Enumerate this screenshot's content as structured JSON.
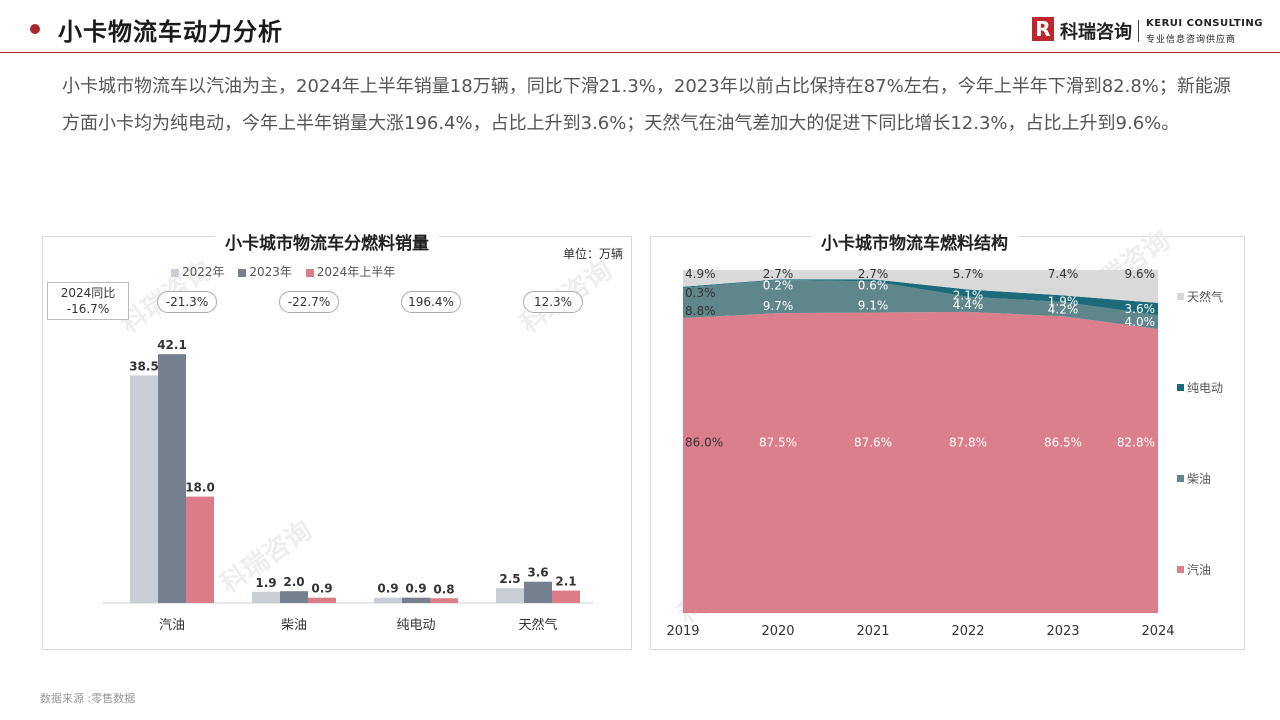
{
  "header": {
    "title": "小卡物流车动力分析",
    "logo_mark": "R",
    "logo_cn": "科瑞咨询",
    "logo_en": "KERUI CONSULTING",
    "logo_sub": "专业信息咨询供应商",
    "accent": "#a8262d"
  },
  "summary": "小卡城市物流车以汽油为主，2024年上半年销量18万辆，同比下滑21.3%，2023年以前占比保持在87%左右，今年上半年下滑到82.8%；新能源方面小卡均为纯电动，今年上半年销量大涨196.4%，占比上升到3.6%；天然气在油气差加大的促进下同比增长12.3%，占比上升到9.6%。",
  "watermark": "科瑞咨询",
  "source": "数据来源 :零售数据",
  "chart_data": [
    {
      "type": "bar",
      "title": "小卡城市物流车分燃料销量",
      "unit": "单位：万辆",
      "categories": [
        "汽油",
        "柴油",
        "纯电动",
        "天然气"
      ],
      "series": [
        {
          "name": "2022年",
          "color": "#c9ced6",
          "values": [
            38.5,
            1.9,
            0.9,
            2.5
          ]
        },
        {
          "name": "2023年",
          "color": "#76818f",
          "values": [
            42.1,
            2.0,
            0.9,
            3.6
          ]
        },
        {
          "name": "2024年上半年",
          "color": "#dc7c89",
          "values": [
            18.0,
            0.9,
            0.8,
            2.1
          ]
        }
      ],
      "yoy_label": "2024同比",
      "yoy_total": "-16.7%",
      "yoy": [
        "-21.3%",
        "-22.7%",
        "196.4%",
        "12.3%"
      ],
      "ylim": [
        0,
        45
      ]
    },
    {
      "type": "area",
      "stacked": true,
      "percent": true,
      "title": "小卡城市物流车燃料结构",
      "x": [
        "2019",
        "2020",
        "2021",
        "2022",
        "2023",
        "2024"
      ],
      "series": [
        {
          "name": "汽油",
          "color": "#dc7f8d",
          "values": [
            86.0,
            87.5,
            87.6,
            87.8,
            86.5,
            82.8
          ],
          "labels": [
            "86.0%",
            "87.5%",
            "87.6%",
            "87.8%",
            "86.5%",
            "82.8%"
          ]
        },
        {
          "name": "柴油",
          "color": "#5f868b",
          "values": [
            8.8,
            9.7,
            9.1,
            4.4,
            4.2,
            4.0
          ],
          "labels": [
            "8.8%",
            "9.7%",
            "9.1%",
            "4.4%",
            "4.2%",
            "4.0%"
          ]
        },
        {
          "name": "纯电动",
          "color": "#1c6a7a",
          "values": [
            0.3,
            0.2,
            0.6,
            2.1,
            1.9,
            3.6
          ],
          "labels": [
            "0.3%",
            "0.2%",
            "0.6%",
            "2.1%",
            "1.9%",
            "3.6%"
          ]
        },
        {
          "name": "天然气",
          "color": "#d9d9d9",
          "values": [
            4.9,
            2.7,
            2.7,
            5.7,
            7.4,
            9.6
          ],
          "labels": [
            "4.9%",
            "2.7%",
            "2.7%",
            "5.7%",
            "7.4%",
            "9.6%"
          ]
        }
      ],
      "legend_order": [
        "天然气",
        "纯电动",
        "柴油",
        "汽油"
      ],
      "ylim": [
        0,
        100
      ]
    }
  ]
}
